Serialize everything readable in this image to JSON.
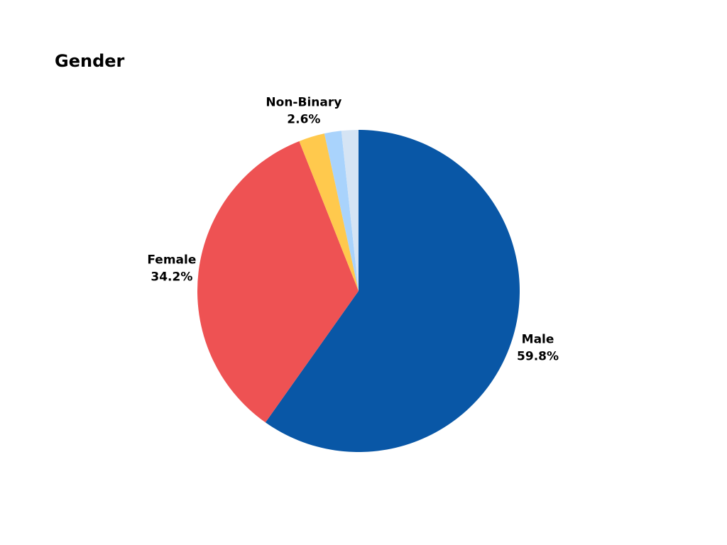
{
  "chart_data": {
    "type": "pie",
    "title": "Gender",
    "categories": [
      "Male",
      "Female",
      "Non-Binary",
      null,
      null
    ],
    "values": [
      59.8,
      34.2,
      2.6,
      1.7,
      1.7
    ],
    "value_labels": [
      "59.8%",
      "34.2%",
      "2.6%",
      null,
      null
    ],
    "colors": [
      "#0957a6",
      "#ee5253",
      "#ffc94d",
      "#a9d3fc",
      "#d5e4f4"
    ]
  }
}
